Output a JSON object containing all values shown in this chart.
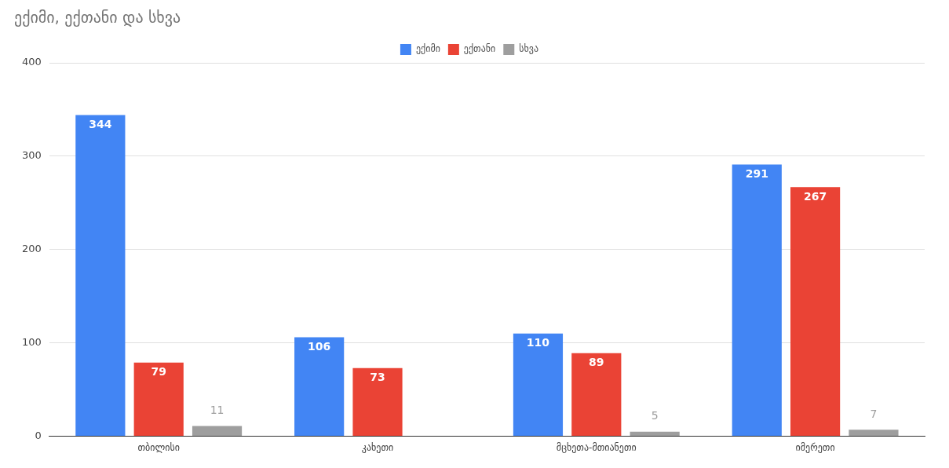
{
  "chart_data": {
    "type": "bar",
    "title": "ექიმი, ექთანი და სხვა",
    "categories": [
      "თბილისი",
      "კახეთი",
      "მცხეთა-მთიანეთი",
      "იმერეთი"
    ],
    "series": [
      {
        "name": "ექიმი",
        "color": "#4285f4",
        "values": [
          344,
          106,
          110,
          291
        ]
      },
      {
        "name": "ექთანი",
        "color": "#ea4335",
        "values": [
          79,
          73,
          89,
          267
        ]
      },
      {
        "name": "სხვა",
        "color": "#9e9e9e",
        "values": [
          11,
          null,
          5,
          7
        ]
      }
    ],
    "ylim": [
      0,
      400
    ],
    "yticks": [
      0,
      100,
      200,
      300,
      400
    ],
    "grid": "y",
    "legend": "top",
    "data_labels": true
  }
}
